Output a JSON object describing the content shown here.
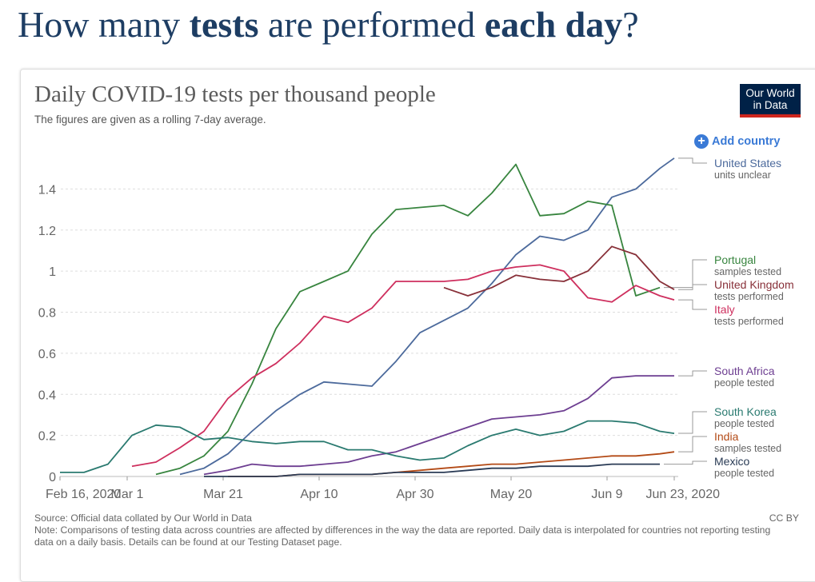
{
  "headline": [
    {
      "text": "How many ",
      "bold": false
    },
    {
      "text": "tests",
      "bold": true
    },
    {
      "text": " are performed ",
      "bold": false
    },
    {
      "text": "each day",
      "bold": true
    },
    {
      "text": "?",
      "bold": false
    }
  ],
  "chart_data": {
    "type": "line",
    "title": "Daily COVID-19 tests per thousand people",
    "subtitle": "The figures are given as a rolling 7-day average.",
    "logo": [
      "Our World",
      "in Data"
    ],
    "button": "Add country",
    "source": "Source: Official data collated by Our World in Data",
    "note": "Note: Comparisons of testing data across countries are affected by differences in the way the data are reported. Daily data is interpolated for countries not reporting testing data on a daily basis. Details can be found at our Testing Dataset page.",
    "license": "CC BY",
    "grid": true,
    "x": [
      "2020-02-16",
      "2020-02-21",
      "2020-02-26",
      "2020-03-02",
      "2020-03-07",
      "2020-03-12",
      "2020-03-17",
      "2020-03-22",
      "2020-03-27",
      "2020-04-01",
      "2020-04-06",
      "2020-04-11",
      "2020-04-16",
      "2020-04-21",
      "2020-04-26",
      "2020-05-01",
      "2020-05-06",
      "2020-05-11",
      "2020-05-16",
      "2020-05-21",
      "2020-05-26",
      "2020-05-31",
      "2020-06-05",
      "2020-06-10",
      "2020-06-15",
      "2020-06-20",
      "2020-06-23"
    ],
    "xlim": [
      "2020-02-16",
      "2020-06-23"
    ],
    "xticks": [
      {
        "value": "2020-02-16",
        "label": "Feb 16, 2020"
      },
      {
        "value": "2020-03-01",
        "label": "Mar 1"
      },
      {
        "value": "2020-03-21",
        "label": "Mar 21"
      },
      {
        "value": "2020-04-10",
        "label": "Apr 10"
      },
      {
        "value": "2020-04-30",
        "label": "Apr 30"
      },
      {
        "value": "2020-05-20",
        "label": "May 20"
      },
      {
        "value": "2020-06-09",
        "label": "Jun 9"
      },
      {
        "value": "2020-06-23",
        "label": "Jun 23, 2020"
      }
    ],
    "ylim": [
      0,
      1.6
    ],
    "yticks": [
      0,
      0.2,
      0.4,
      0.6,
      0.8,
      1,
      1.2,
      1.4
    ],
    "series": [
      {
        "name": "United States",
        "note": "units unclear",
        "color": "#4c6a9c",
        "values": [
          null,
          null,
          null,
          null,
          null,
          0.01,
          0.04,
          0.11,
          0.22,
          0.32,
          0.4,
          0.46,
          0.45,
          0.44,
          0.56,
          0.7,
          0.76,
          0.82,
          0.94,
          1.08,
          1.17,
          1.15,
          1.2,
          1.36,
          1.4,
          1.5,
          1.55
        ]
      },
      {
        "name": "Portugal",
        "note": "samples tested",
        "color": "#38853f",
        "values": [
          null,
          null,
          null,
          null,
          0.01,
          0.04,
          0.1,
          0.22,
          0.45,
          0.72,
          0.9,
          0.95,
          1.0,
          1.18,
          1.3,
          1.31,
          1.32,
          1.27,
          1.38,
          1.52,
          1.27,
          1.28,
          1.34,
          1.32,
          0.88,
          0.92,
          null
        ]
      },
      {
        "name": "United Kingdom",
        "note": "tests performed",
        "color": "#883039",
        "values": [
          null,
          null,
          null,
          null,
          null,
          null,
          null,
          null,
          null,
          null,
          null,
          null,
          null,
          null,
          null,
          null,
          0.92,
          0.88,
          0.92,
          0.98,
          0.96,
          0.95,
          1.0,
          1.12,
          1.08,
          0.95,
          0.91
        ]
      },
      {
        "name": "Italy",
        "note": "tests performed",
        "color": "#ce2f5e",
        "values": [
          null,
          null,
          null,
          0.05,
          0.07,
          0.14,
          0.22,
          0.38,
          0.48,
          0.55,
          0.65,
          0.78,
          0.75,
          0.82,
          0.95,
          0.95,
          0.95,
          0.96,
          1.0,
          1.02,
          1.03,
          1.0,
          0.87,
          0.85,
          0.93,
          0.88,
          0.86
        ]
      },
      {
        "name": "South Africa",
        "note": "people tested",
        "color": "#6d3e91",
        "values": [
          null,
          null,
          null,
          null,
          null,
          null,
          0.01,
          0.03,
          0.06,
          0.05,
          0.05,
          0.06,
          0.07,
          0.1,
          0.12,
          0.16,
          0.2,
          0.24,
          0.28,
          0.29,
          0.3,
          0.32,
          0.38,
          0.48,
          0.49,
          0.49,
          0.49
        ]
      },
      {
        "name": "South Korea",
        "note": "people tested",
        "color": "#2a7a70",
        "values": [
          0.02,
          0.02,
          0.06,
          0.2,
          0.25,
          0.24,
          0.18,
          0.19,
          0.17,
          0.16,
          0.17,
          0.17,
          0.13,
          0.13,
          0.1,
          0.08,
          0.09,
          0.15,
          0.2,
          0.23,
          0.2,
          0.22,
          0.27,
          0.27,
          0.26,
          0.22,
          0.21
        ]
      },
      {
        "name": "India",
        "note": "samples tested",
        "color": "#b34a16",
        "values": [
          null,
          null,
          null,
          null,
          null,
          null,
          null,
          0.0,
          0.0,
          0.0,
          0.01,
          0.01,
          0.01,
          0.01,
          0.02,
          0.03,
          0.04,
          0.05,
          0.06,
          0.06,
          0.07,
          0.08,
          0.09,
          0.1,
          0.1,
          0.11,
          0.12
        ]
      },
      {
        "name": "Mexico",
        "note": "people tested",
        "color": "#2a3b55",
        "values": [
          null,
          null,
          null,
          null,
          null,
          null,
          0.0,
          0.0,
          0.0,
          0.0,
          0.01,
          0.01,
          0.01,
          0.01,
          0.02,
          0.02,
          0.02,
          0.03,
          0.04,
          0.04,
          0.05,
          0.05,
          0.05,
          0.06,
          0.06,
          0.06,
          null
        ]
      }
    ]
  }
}
